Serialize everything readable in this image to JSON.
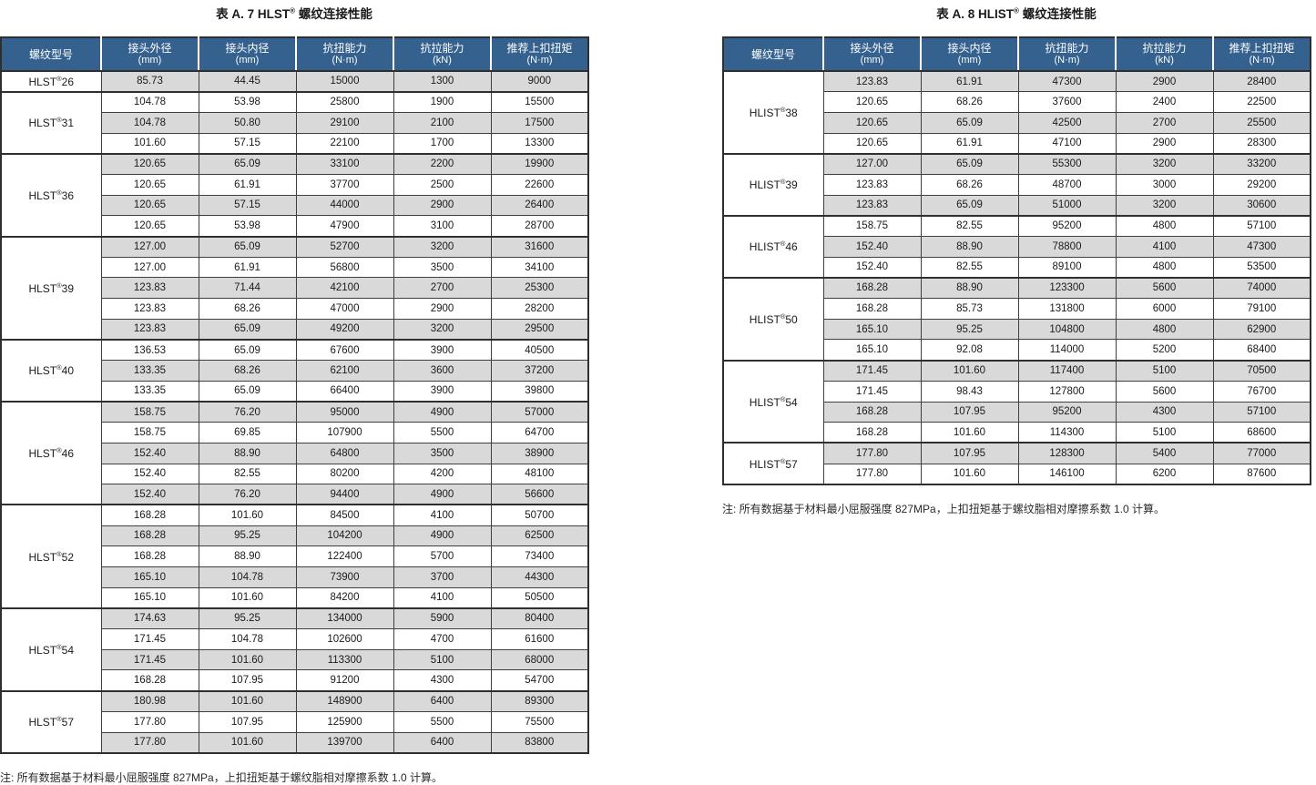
{
  "reg_mark": "®",
  "colors": {
    "header_bg": "#35618f",
    "row_alt": "#d9d9d9",
    "border_dark": "#2f2f2f"
  },
  "tables": [
    {
      "title_pre": "表 A. 7 HLST",
      "title_post": " 螺纹连接性能",
      "columns": [
        {
          "label": "螺纹型号",
          "unit": ""
        },
        {
          "label": "接头外径",
          "unit": "(mm)"
        },
        {
          "label": "接头内径",
          "unit": "(mm)"
        },
        {
          "label": "抗扭能力",
          "unit": "(N·m)"
        },
        {
          "label": "抗拉能力",
          "unit": "(kN)"
        },
        {
          "label": "推荐上扣扭矩",
          "unit": "(N·m)"
        }
      ],
      "groups": [
        {
          "model": "HLST",
          "size": "26",
          "rows": [
            [
              "85.73",
              "44.45",
              "15000",
              "1300",
              "9000"
            ]
          ]
        },
        {
          "model": "HLST",
          "size": "31",
          "rows": [
            [
              "104.78",
              "53.98",
              "25800",
              "1900",
              "15500"
            ],
            [
              "104.78",
              "50.80",
              "29100",
              "2100",
              "17500"
            ],
            [
              "101.60",
              "57.15",
              "22100",
              "1700",
              "13300"
            ]
          ]
        },
        {
          "model": "HLST",
          "size": "36",
          "rows": [
            [
              "120.65",
              "65.09",
              "33100",
              "2200",
              "19900"
            ],
            [
              "120.65",
              "61.91",
              "37700",
              "2500",
              "22600"
            ],
            [
              "120.65",
              "57.15",
              "44000",
              "2900",
              "26400"
            ],
            [
              "120.65",
              "53.98",
              "47900",
              "3100",
              "28700"
            ]
          ]
        },
        {
          "model": "HLST",
          "size": "39",
          "rows": [
            [
              "127.00",
              "65.09",
              "52700",
              "3200",
              "31600"
            ],
            [
              "127.00",
              "61.91",
              "56800",
              "3500",
              "34100"
            ],
            [
              "123.83",
              "71.44",
              "42100",
              "2700",
              "25300"
            ],
            [
              "123.83",
              "68.26",
              "47000",
              "2900",
              "28200"
            ],
            [
              "123.83",
              "65.09",
              "49200",
              "3200",
              "29500"
            ]
          ]
        },
        {
          "model": "HLST",
          "size": "40",
          "rows": [
            [
              "136.53",
              "65.09",
              "67600",
              "3900",
              "40500"
            ],
            [
              "133.35",
              "68.26",
              "62100",
              "3600",
              "37200"
            ],
            [
              "133.35",
              "65.09",
              "66400",
              "3900",
              "39800"
            ]
          ]
        },
        {
          "model": "HLST",
          "size": "46",
          "rows": [
            [
              "158.75",
              "76.20",
              "95000",
              "4900",
              "57000"
            ],
            [
              "158.75",
              "69.85",
              "107900",
              "5500",
              "64700"
            ],
            [
              "152.40",
              "88.90",
              "64800",
              "3500",
              "38900"
            ],
            [
              "152.40",
              "82.55",
              "80200",
              "4200",
              "48100"
            ],
            [
              "152.40",
              "76.20",
              "94400",
              "4900",
              "56600"
            ]
          ]
        },
        {
          "model": "HLST",
          "size": "52",
          "rows": [
            [
              "168.28",
              "101.60",
              "84500",
              "4100",
              "50700"
            ],
            [
              "168.28",
              "95.25",
              "104200",
              "4900",
              "62500"
            ],
            [
              "168.28",
              "88.90",
              "122400",
              "5700",
              "73400"
            ],
            [
              "165.10",
              "104.78",
              "73900",
              "3700",
              "44300"
            ],
            [
              "165.10",
              "101.60",
              "84200",
              "4100",
              "50500"
            ]
          ]
        },
        {
          "model": "HLST",
          "size": "54",
          "rows": [
            [
              "174.63",
              "95.25",
              "134000",
              "5900",
              "80400"
            ],
            [
              "171.45",
              "104.78",
              "102600",
              "4700",
              "61600"
            ],
            [
              "171.45",
              "101.60",
              "113300",
              "5100",
              "68000"
            ],
            [
              "168.28",
              "107.95",
              "91200",
              "4300",
              "54700"
            ]
          ]
        },
        {
          "model": "HLST",
          "size": "57",
          "rows": [
            [
              "180.98",
              "101.60",
              "148900",
              "6400",
              "89300"
            ],
            [
              "177.80",
              "107.95",
              "125900",
              "5500",
              "75500"
            ],
            [
              "177.80",
              "101.60",
              "139700",
              "6400",
              "83800"
            ]
          ]
        }
      ],
      "note": "注: 所有数据基于材料最小屈服强度 827MPa，上扣扭矩基于螺纹脂相对摩擦系数 1.0 计算。"
    },
    {
      "title_pre": "表 A. 8 HLIST",
      "title_post": " 螺纹连接性能",
      "columns": [
        {
          "label": "螺纹型号",
          "unit": ""
        },
        {
          "label": "接头外径",
          "unit": "(mm)"
        },
        {
          "label": "接头内径",
          "unit": "(mm)"
        },
        {
          "label": "抗扭能力",
          "unit": "(N·m)"
        },
        {
          "label": "抗拉能力",
          "unit": "(kN)"
        },
        {
          "label": "推荐上扣扭矩",
          "unit": "(N·m)"
        }
      ],
      "groups": [
        {
          "model": "HLIST",
          "size": "38",
          "rows": [
            [
              "123.83",
              "61.91",
              "47300",
              "2900",
              "28400"
            ],
            [
              "120.65",
              "68.26",
              "37600",
              "2400",
              "22500"
            ],
            [
              "120.65",
              "65.09",
              "42500",
              "2700",
              "25500"
            ],
            [
              "120.65",
              "61.91",
              "47100",
              "2900",
              "28300"
            ]
          ]
        },
        {
          "model": "HLIST",
          "size": "39",
          "rows": [
            [
              "127.00",
              "65.09",
              "55300",
              "3200",
              "33200"
            ],
            [
              "123.83",
              "68.26",
              "48700",
              "3000",
              "29200"
            ],
            [
              "123.83",
              "65.09",
              "51000",
              "3200",
              "30600"
            ]
          ]
        },
        {
          "model": "HLIST",
          "size": "46",
          "rows": [
            [
              "158.75",
              "82.55",
              "95200",
              "4800",
              "57100"
            ],
            [
              "152.40",
              "88.90",
              "78800",
              "4100",
              "47300"
            ],
            [
              "152.40",
              "82.55",
              "89100",
              "4800",
              "53500"
            ]
          ]
        },
        {
          "model": "HLIST",
          "size": "50",
          "rows": [
            [
              "168.28",
              "88.90",
              "123300",
              "5600",
              "74000"
            ],
            [
              "168.28",
              "85.73",
              "131800",
              "6000",
              "79100"
            ],
            [
              "165.10",
              "95.25",
              "104800",
              "4800",
              "62900"
            ],
            [
              "165.10",
              "92.08",
              "114000",
              "5200",
              "68400"
            ]
          ]
        },
        {
          "model": "HLIST",
          "size": "54",
          "rows": [
            [
              "171.45",
              "101.60",
              "117400",
              "5100",
              "70500"
            ],
            [
              "171.45",
              "98.43",
              "127800",
              "5600",
              "76700"
            ],
            [
              "168.28",
              "107.95",
              "95200",
              "4300",
              "57100"
            ],
            [
              "168.28",
              "101.60",
              "114300",
              "5100",
              "68600"
            ]
          ]
        },
        {
          "model": "HLIST",
          "size": "57",
          "rows": [
            [
              "177.80",
              "107.95",
              "128300",
              "5400",
              "77000"
            ],
            [
              "177.80",
              "101.60",
              "146100",
              "6200",
              "87600"
            ]
          ]
        }
      ],
      "note": "注: 所有数据基于材料最小屈服强度 827MPa，上扣扭矩基于螺纹脂相对摩擦系数 1.0 计算。"
    }
  ]
}
